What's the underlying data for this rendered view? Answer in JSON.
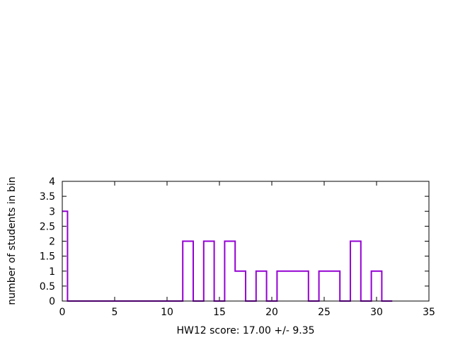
{
  "chart_data": {
    "type": "step",
    "title": "",
    "xlabel": "HW12 score: 17.00 +/- 9.35",
    "ylabel": "number of students in bin",
    "xlim": [
      0,
      35
    ],
    "ylim": [
      0,
      4
    ],
    "xticks": [
      0,
      5,
      10,
      15,
      20,
      25,
      30,
      35
    ],
    "yticks": [
      0,
      0.5,
      1,
      1.5,
      2,
      2.5,
      3,
      3.5,
      4
    ],
    "grid": false,
    "legend": "none",
    "line_color": "#9400d3",
    "series": [
      {
        "x": [
          0,
          0.5,
          11.5,
          12.5,
          13.5,
          14.5,
          15.5,
          16.5,
          17.5,
          18.5,
          19.5,
          20.5,
          23.5,
          24.5,
          26.5,
          27.5,
          28.5,
          29.5,
          30.5,
          31.5
        ],
        "y": [
          3,
          0,
          2,
          0,
          2,
          0,
          2,
          1,
          0,
          1,
          0,
          1,
          0,
          1,
          0,
          2,
          0,
          1,
          0,
          0
        ]
      }
    ]
  }
}
